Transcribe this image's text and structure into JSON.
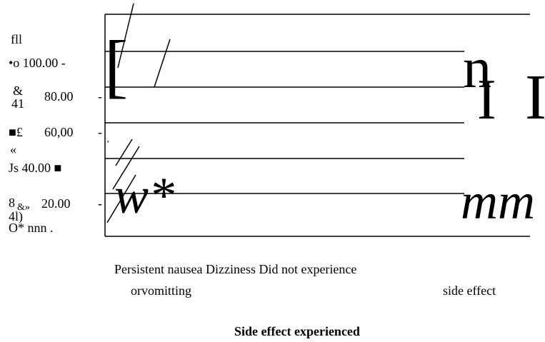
{
  "axis_labels": {
    "top": "fll",
    "ticks": [
      "•o 100.00 -",
      "&",
      "80.00",
      "-",
      "41",
      "■£",
      "60,00",
      "-",
      "«",
      "Js 40.00 ■",
      "8",
      "&»",
      "20.00",
      "-",
      "4l)",
      "O* nnn ."
    ]
  },
  "glyphs": [
    "[",
    "n",
    "I",
    "I",
    "w*",
    "mm",
    "'"
  ],
  "categories": [
    "Persistent nausea Dizziness Did not experience",
    "orvomitting",
    "side effect"
  ],
  "x_axis_title": "Side effect experienced"
}
